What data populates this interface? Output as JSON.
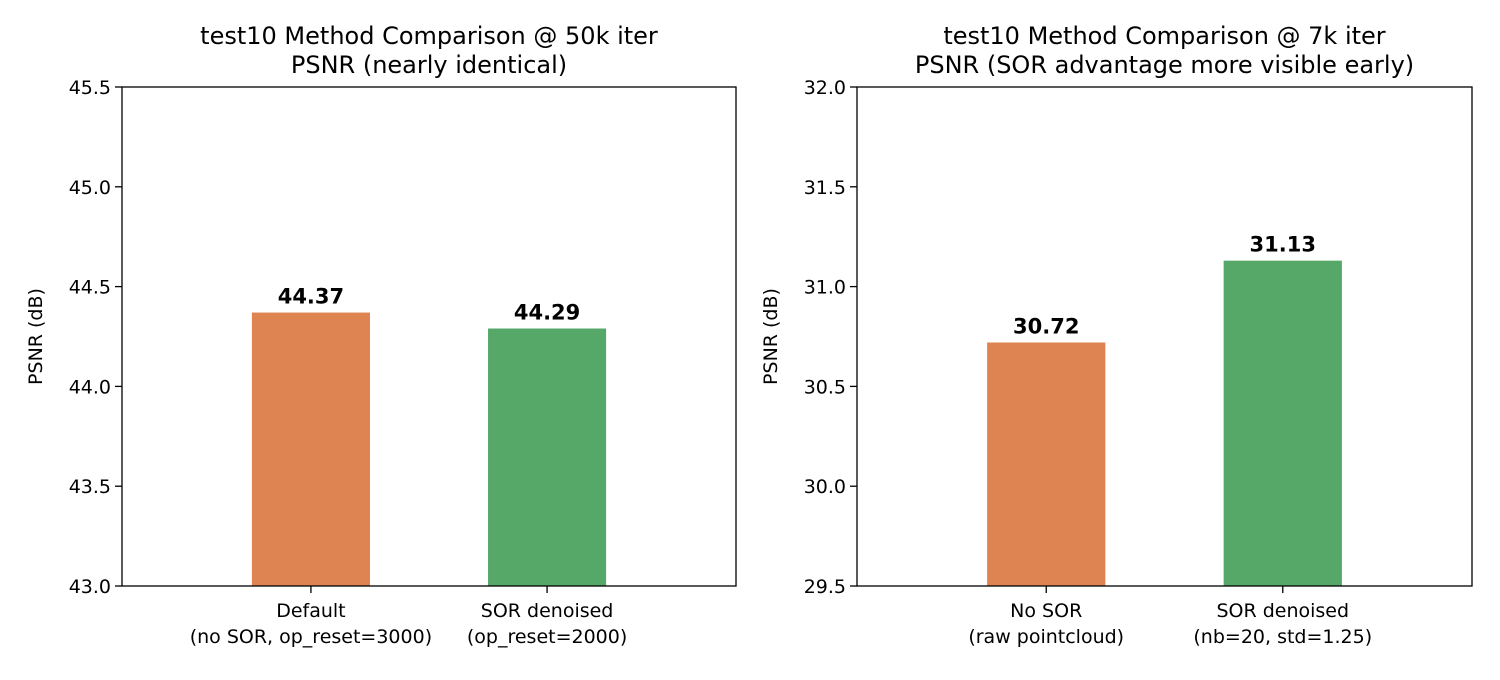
{
  "chart_data": [
    {
      "type": "bar",
      "title": "test10 Method Comparison @ 50k iter",
      "subtitle": "PSNR (nearly identical)",
      "xlabel": "",
      "ylabel": "PSNR (dB)",
      "ylim": [
        43.0,
        45.5
      ],
      "yticks": [
        "43.0",
        "43.5",
        "44.0",
        "44.5",
        "45.0",
        "45.5"
      ],
      "grid": false,
      "categories": [
        [
          "Default",
          "(no SOR, op_reset=3000)"
        ],
        [
          "SOR denoised",
          "(op_reset=2000)"
        ]
      ],
      "values": [
        44.37,
        44.29
      ],
      "data_labels": [
        "44.37",
        "44.29"
      ],
      "colors": [
        "#dd8452",
        "#55a868"
      ]
    },
    {
      "type": "bar",
      "title": "test10 Method Comparison @ 7k iter",
      "subtitle": "PSNR (SOR advantage more visible early)",
      "xlabel": "",
      "ylabel": "PSNR (dB)",
      "ylim": [
        29.5,
        32.0
      ],
      "yticks": [
        "29.5",
        "30.0",
        "30.5",
        "31.0",
        "31.5",
        "32.0"
      ],
      "grid": false,
      "categories": [
        [
          "No SOR",
          "(raw pointcloud)"
        ],
        [
          "SOR denoised",
          "(nb=20, std=1.25)"
        ]
      ],
      "values": [
        30.72,
        31.13
      ],
      "data_labels": [
        "30.72",
        "31.13"
      ],
      "colors": [
        "#dd8452",
        "#55a868"
      ]
    }
  ]
}
